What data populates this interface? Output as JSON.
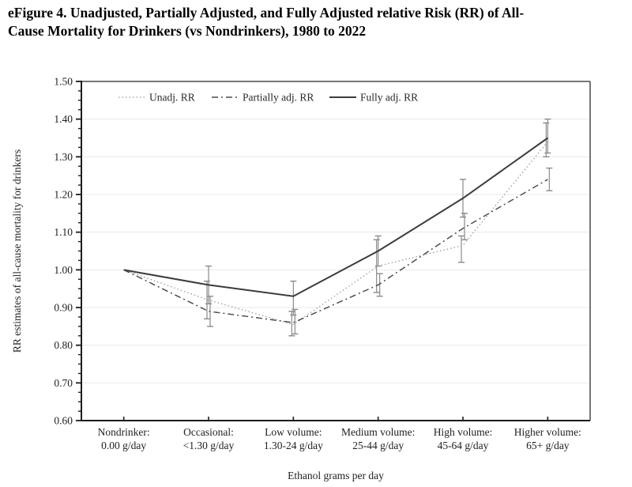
{
  "header": {
    "title_line1": "eFigure 4. Unadjusted, Partially Adjusted, and Fully Adjusted relative Risk (RR) of All-",
    "title_line2": "Cause Mortality for Drinkers (vs Nondrinkers), 1980 to 2022"
  },
  "chart_data": {
    "type": "line",
    "title": "",
    "xlabel": "Ethanol grams per day",
    "ylabel": "RR estimates of all-cause mortality for drinkers",
    "ylim": [
      0.6,
      1.5
    ],
    "ytick_step": 0.1,
    "ytick_minor_step": 0.025,
    "grid": true,
    "legend_position": "top-inside",
    "categories": [
      {
        "line1": "Nondrinker:",
        "line2": "0.00 g/day"
      },
      {
        "line1": "Occasional:",
        "line2": "<1.30 g/day"
      },
      {
        "line1": "Low volume:",
        "line2": "1.30-24 g/day"
      },
      {
        "line1": "Medium volume:",
        "line2": "25-44 g/day"
      },
      {
        "line1": "High volume:",
        "line2": "45-64 g/day"
      },
      {
        "line1": "Higher volume:",
        "line2": "65+ g/day"
      }
    ],
    "series": [
      {
        "name": "Unadj. RR",
        "style": "dotted",
        "color": "#9a9a9a",
        "values": [
          1.0,
          0.92,
          0.855,
          1.01,
          1.065,
          1.34
        ],
        "ci": [
          null,
          [
            0.87,
            0.97
          ],
          [
            0.825,
            0.89
          ],
          [
            0.94,
            1.08
          ],
          [
            1.02,
            1.09
          ],
          [
            1.3,
            1.39
          ]
        ]
      },
      {
        "name": "Partially adj. RR",
        "style": "dashdot",
        "color": "#4d4d4d",
        "values": [
          1.0,
          0.89,
          0.86,
          0.96,
          1.11,
          1.24
        ],
        "ci": [
          null,
          [
            0.85,
            0.93
          ],
          [
            0.83,
            0.895
          ],
          [
            0.93,
            0.99
          ],
          [
            1.08,
            1.15
          ],
          [
            1.21,
            1.27
          ]
        ]
      },
      {
        "name": "Fully adj. RR",
        "style": "solid",
        "color": "#3c3c3c",
        "values": [
          1.0,
          0.96,
          0.93,
          1.05,
          1.19,
          1.35
        ],
        "ci": [
          null,
          [
            0.91,
            1.01
          ],
          [
            0.88,
            0.97
          ],
          [
            1.01,
            1.09
          ],
          [
            1.14,
            1.24
          ],
          [
            1.31,
            1.4
          ]
        ]
      }
    ],
    "colors": {
      "error_bar": "#8a8a8a",
      "grid": "#e8e8e8",
      "axis": "#1c1c1c",
      "border": "#4a4a4a",
      "text": "#1f1f1f"
    }
  }
}
